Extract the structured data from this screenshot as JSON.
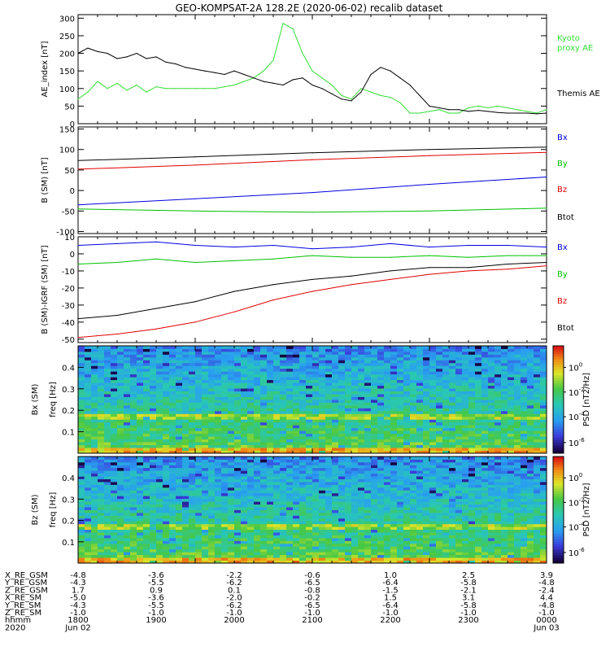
{
  "title": "GEO-KOMPSAT-2A 128.2E (2020-06-02) recalib dataset",
  "colors": {
    "black": "#000000",
    "red": "#e00000",
    "green": "#00c000",
    "blue": "#0000e0",
    "lightgreen": "#33dd33"
  },
  "chart_data": [
    {
      "type": "line",
      "ylabel": "AE_index [nT]",
      "ylim": [
        0,
        310
      ],
      "yticks": [
        "0",
        "50",
        "100",
        "150",
        "200",
        "250",
        "300"
      ],
      "series": [
        {
          "name": "Kyoto proxy AE",
          "color": "#33dd33",
          "x": [
            0,
            5,
            10,
            15,
            20,
            25,
            30,
            35,
            40,
            45,
            50,
            55,
            60,
            65,
            70,
            75,
            80,
            85,
            90,
            95,
            100,
            105,
            110,
            115,
            120,
            125,
            130,
            135,
            140,
            145,
            150,
            155,
            160,
            165,
            170,
            175,
            180,
            185,
            190,
            195,
            200,
            205,
            210,
            215,
            220,
            225,
            230,
            235,
            240
          ],
          "values": [
            70,
            90,
            120,
            100,
            115,
            95,
            110,
            90,
            105,
            100,
            100,
            100,
            100,
            100,
            100,
            105,
            110,
            120,
            130,
            150,
            180,
            285,
            270,
            200,
            150,
            130,
            110,
            80,
            70,
            100,
            90,
            80,
            75,
            60,
            30,
            30,
            35,
            40,
            30,
            30,
            45,
            50,
            45,
            50,
            45,
            40,
            35,
            30,
            40
          ]
        },
        {
          "name": "Themis AE",
          "color": "#000000",
          "x": [
            0,
            5,
            10,
            15,
            20,
            25,
            30,
            35,
            40,
            45,
            50,
            55,
            60,
            65,
            70,
            75,
            80,
            85,
            90,
            95,
            100,
            105,
            110,
            115,
            120,
            125,
            130,
            135,
            140,
            145,
            150,
            155,
            160,
            165,
            170,
            175,
            180,
            185,
            190,
            195,
            200,
            205,
            210,
            215,
            220,
            225,
            230,
            235,
            240
          ],
          "values": [
            200,
            215,
            205,
            200,
            185,
            190,
            200,
            185,
            190,
            175,
            170,
            160,
            155,
            150,
            145,
            140,
            150,
            140,
            130,
            120,
            115,
            110,
            125,
            130,
            110,
            100,
            85,
            70,
            65,
            90,
            140,
            160,
            150,
            130,
            110,
            80,
            50,
            45,
            40,
            40,
            35,
            38,
            35,
            32,
            30,
            30,
            30,
            28,
            30
          ]
        }
      ]
    },
    {
      "type": "line",
      "ylabel": "B (SM) [nT]",
      "ylim": [
        -105,
        155
      ],
      "yticks": [
        "-100",
        "-50",
        "0",
        "50",
        "100",
        "150"
      ],
      "series": [
        {
          "name": "Bx",
          "color": "#0000e0",
          "x": [
            0,
            60,
            120,
            180,
            240
          ],
          "values": [
            -35,
            -20,
            -5,
            15,
            33
          ]
        },
        {
          "name": "By",
          "color": "#00c000",
          "x": [
            0,
            60,
            120,
            180,
            240
          ],
          "values": [
            -45,
            -50,
            -53,
            -50,
            -43
          ]
        },
        {
          "name": "Bz",
          "color": "#e00000",
          "x": [
            0,
            60,
            120,
            180,
            240
          ],
          "values": [
            52,
            62,
            75,
            85,
            93
          ]
        },
        {
          "name": "Btot",
          "color": "#000000",
          "x": [
            0,
            60,
            120,
            180,
            240
          ],
          "values": [
            73,
            82,
            92,
            100,
            106
          ]
        }
      ]
    },
    {
      "type": "line",
      "ylabel": "B (SM)-IGRF (SM) [nT]",
      "ylim": [
        -52,
        10
      ],
      "yticks": [
        "-50",
        "-40",
        "-30",
        "-20",
        "-10",
        "0",
        "10"
      ],
      "series": [
        {
          "name": "Bx",
          "color": "#0000e0",
          "x": [
            0,
            20,
            40,
            60,
            80,
            100,
            120,
            140,
            160,
            180,
            200,
            220,
            240
          ],
          "values": [
            5,
            6,
            7,
            5,
            4,
            5,
            3,
            4,
            6,
            4,
            5,
            5,
            4
          ]
        },
        {
          "name": "By",
          "color": "#00c000",
          "x": [
            0,
            20,
            40,
            60,
            80,
            100,
            120,
            140,
            160,
            180,
            200,
            220,
            240
          ],
          "values": [
            -6,
            -5,
            -3,
            -5,
            -4,
            -3,
            -1,
            -2,
            -2,
            -1,
            -2,
            -1,
            -1
          ]
        },
        {
          "name": "Bz",
          "color": "#e00000",
          "x": [
            0,
            20,
            40,
            60,
            80,
            100,
            120,
            140,
            160,
            180,
            200,
            220,
            240
          ],
          "values": [
            -49,
            -47,
            -44,
            -40,
            -34,
            -27,
            -22,
            -18,
            -15,
            -12,
            -10,
            -9,
            -7
          ]
        },
        {
          "name": "Btot",
          "color": "#000000",
          "x": [
            0,
            20,
            40,
            60,
            80,
            100,
            120,
            140,
            160,
            180,
            200,
            220,
            240
          ],
          "values": [
            -38,
            -36,
            -32,
            -28,
            -22,
            -18,
            -15,
            -13,
            -10,
            -8,
            -8,
            -6,
            -5
          ]
        }
      ]
    },
    {
      "type": "heatmap",
      "ylabel": "Bx (SM) freq [Hz]",
      "ylim": [
        0,
        0.5
      ],
      "yticks": [
        "0.1",
        "0.2",
        "0.3",
        "0.4"
      ],
      "colorbar_label": "PSD [nT2/Hz]",
      "colorbar_ticks": [
        "10^0",
        "10^-2",
        "10^-4",
        "10^-6"
      ]
    },
    {
      "type": "heatmap",
      "ylabel": "Bz (SM) freq [Hz]",
      "ylim": [
        0,
        0.5
      ],
      "yticks": [
        "0.1",
        "0.2",
        "0.3",
        "0.4"
      ],
      "colorbar_label": "PSD [nT2/Hz]",
      "colorbar_ticks": [
        "10^0",
        "10^-2",
        "10^-4",
        "10^-6"
      ]
    }
  ],
  "ephemeris": {
    "rows": [
      {
        "label": "X_RE_GSM",
        "values": [
          "-4.8",
          "-3.6",
          "-2.2",
          "-0.6",
          "1.0",
          "2.5",
          "3.9"
        ]
      },
      {
        "label": "Y_RE_GSM",
        "values": [
          "-4.3",
          "-5.5",
          "-6.2",
          "-6.5",
          "-6.4",
          "-5.8",
          "-4.8"
        ]
      },
      {
        "label": "Z_RE_GSM",
        "values": [
          "1.7",
          "0.9",
          "0.1",
          "-0.8",
          "-1.5",
          "-2.1",
          "-2.4"
        ]
      },
      {
        "label": "X_RE_SM",
        "values": [
          "-5.0",
          "-3.6",
          "-2.0",
          "-0.2",
          "1.5",
          "3.1",
          "4.4"
        ]
      },
      {
        "label": "Y_RE_SM",
        "values": [
          "-4.3",
          "-5.5",
          "-6.2",
          "-6.5",
          "-6.4",
          "-5.8",
          "-4.8"
        ]
      },
      {
        "label": "Z_RE_SM",
        "values": [
          "-1.0",
          "-1.0",
          "-1.0",
          "-1.0",
          "-1.0",
          "-1.0",
          "-1.0"
        ]
      },
      {
        "label": "hhmm",
        "values": [
          "1800",
          "1900",
          "2000",
          "2100",
          "2200",
          "2300",
          "0000"
        ]
      },
      {
        "label": "2020",
        "values": [
          "Jun 02",
          "",
          "",
          "",
          "",
          "",
          "Jun 03"
        ]
      }
    ]
  }
}
